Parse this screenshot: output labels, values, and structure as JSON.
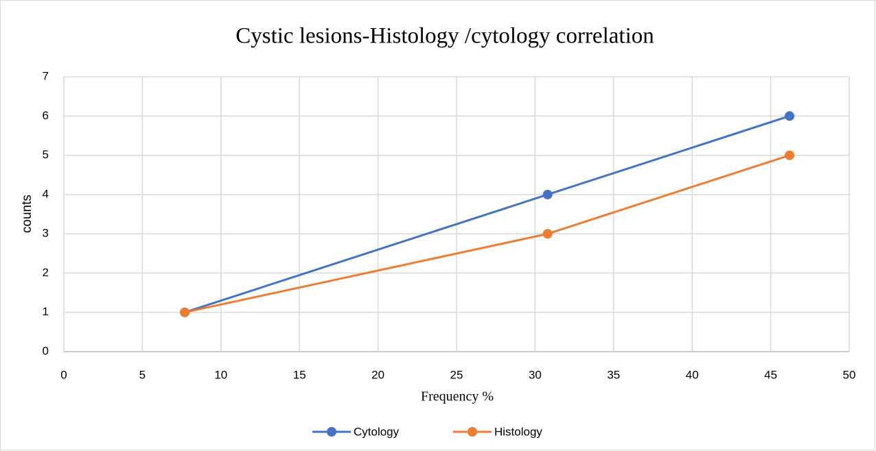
{
  "chart_data": {
    "type": "line",
    "title": "Cystic lesions-Histology /cytology correlation",
    "x_label": "Frequency %",
    "y_label": "counts",
    "x": [
      7.7,
      30.8,
      46.2
    ],
    "series": [
      {
        "name": "Cytology",
        "color": "#4472c4",
        "values": [
          1,
          4,
          6
        ]
      },
      {
        "name": "Histology",
        "color": "#ed7d31",
        "values": [
          1,
          3,
          5
        ]
      }
    ],
    "xlim": [
      0,
      50
    ],
    "xticks": [
      0,
      5,
      10,
      15,
      20,
      25,
      30,
      35,
      40,
      45,
      50
    ],
    "ylim": [
      0,
      7
    ],
    "yticks": [
      0,
      1,
      2,
      3,
      4,
      5,
      6,
      7
    ],
    "grid": true,
    "legend": "bottom"
  }
}
